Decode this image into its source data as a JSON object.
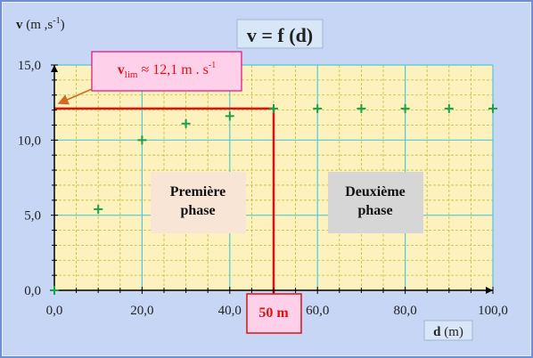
{
  "chart_data": {
    "type": "scatter",
    "title": "v = f (d)",
    "ylabel": {
      "main": "v",
      "unit_open": " (m ,s",
      "unit_sup": "-1",
      "unit_close": ")"
    },
    "xlabel": {
      "main": "d",
      "unit": " (m)"
    },
    "xlim": [
      0,
      100
    ],
    "ylim": [
      0,
      15
    ],
    "x_ticks": [
      "0,0",
      "20,0",
      "40,0",
      "60,0",
      "80,0",
      "100,0"
    ],
    "x_tick_values": [
      0,
      20,
      40,
      60,
      80,
      100
    ],
    "y_ticks": [
      "0,0",
      "5,0",
      "10,0",
      "15,0"
    ],
    "y_tick_values": [
      0,
      5,
      10,
      15
    ],
    "grid": true,
    "series": [
      {
        "marker": "+",
        "color": "#1aa04a",
        "points": [
          {
            "x": 0,
            "y": 0
          },
          {
            "x": 10,
            "y": 5.4
          },
          {
            "x": 20,
            "y": 10.0
          },
          {
            "x": 30,
            "y": 11.1
          },
          {
            "x": 40,
            "y": 11.6
          },
          {
            "x": 50,
            "y": 12.1
          },
          {
            "x": 60,
            "y": 12.1
          },
          {
            "x": 70,
            "y": 12.1
          },
          {
            "x": 80,
            "y": 12.1
          },
          {
            "x": 90,
            "y": 12.1
          },
          {
            "x": 100,
            "y": 12.1
          }
        ]
      }
    ],
    "vlim_annotation": {
      "sym": "v",
      "sub": "lim",
      "text": " ≈ 12,1 m . s",
      "sup": "-1",
      "value": 12.1
    },
    "d_annotation": {
      "text": "50 m",
      "value": 50
    },
    "phase_labels": [
      {
        "line1": "Première",
        "line2": "phase"
      },
      {
        "line1": "Deuxième",
        "line2": "phase"
      }
    ],
    "colors": {
      "plot_bg": "#fdf1be",
      "grid_major": "#53c8d8",
      "grid_minor": "#b7c23a",
      "marker": "#1aa04a",
      "annotation": "#e01010",
      "callout_bg": "#ffd0ea",
      "phase1_bg": "#f8e5d6",
      "phase2_bg": "#d6d6d6"
    }
  }
}
